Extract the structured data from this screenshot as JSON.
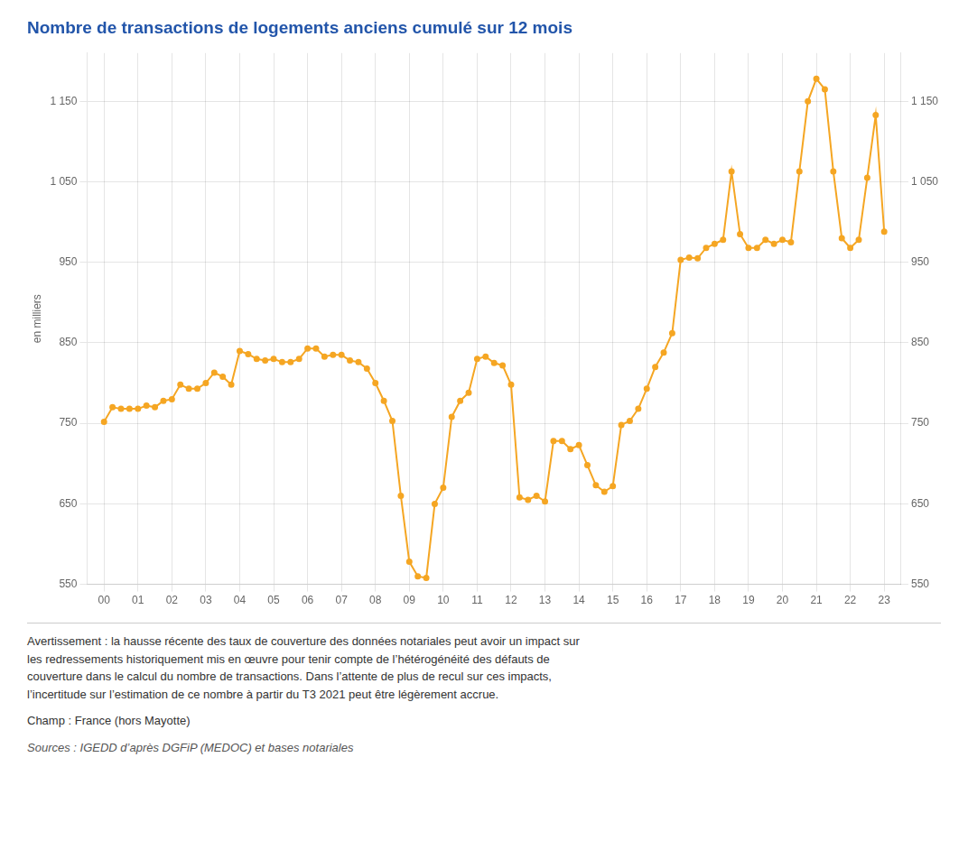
{
  "chart_data": {
    "type": "line",
    "title": "Nombre de transactions de logements anciens cumulé sur 12 mois",
    "ylabel": "en milliers",
    "color": "#F5A623",
    "marker": "circle",
    "grid": true,
    "x": [
      0.0,
      0.25,
      0.5,
      0.75,
      1.0,
      1.25,
      1.5,
      1.75,
      2.0,
      2.25,
      2.5,
      2.75,
      3.0,
      3.25,
      3.5,
      3.75,
      4.0,
      4.25,
      4.5,
      4.75,
      5.0,
      5.25,
      5.5,
      5.75,
      6.0,
      6.25,
      6.5,
      6.75,
      7.0,
      7.25,
      7.5,
      7.75,
      8.0,
      8.25,
      8.5,
      8.75,
      9.0,
      9.25,
      9.5,
      9.75,
      10.0,
      10.25,
      10.5,
      10.75,
      11.0,
      11.25,
      11.5,
      11.75,
      12.0,
      12.25,
      12.5,
      12.75,
      13.0,
      13.25,
      13.5,
      13.75,
      14.0,
      14.25,
      14.5,
      14.75,
      15.0,
      15.25,
      15.5,
      15.75,
      16.0,
      16.25,
      16.5,
      16.75,
      17.0,
      17.25,
      17.5,
      17.75,
      18.0,
      18.25,
      18.5,
      18.75,
      19.0,
      19.25,
      19.5,
      19.75,
      20.0,
      20.25,
      20.5,
      20.75,
      21.0,
      21.25,
      21.5,
      21.75,
      22.0,
      22.25,
      22.5,
      22.75,
      23.0
    ],
    "values": [
      752,
      770,
      768,
      768,
      768,
      772,
      770,
      778,
      780,
      798,
      793,
      793,
      800,
      813,
      808,
      798,
      840,
      836,
      830,
      828,
      830,
      826,
      826,
      830,
      843,
      843,
      833,
      835,
      835,
      828,
      826,
      818,
      800,
      778,
      753,
      660,
      578,
      560,
      558,
      650,
      670,
      758,
      778,
      788,
      830,
      833,
      825,
      822,
      798,
      658,
      655,
      660,
      653,
      728,
      728,
      718,
      723,
      698,
      673,
      665,
      672,
      748,
      753,
      768,
      793,
      820,
      838,
      862,
      953,
      956,
      955,
      968,
      973,
      978,
      1063,
      985,
      968,
      968,
      978,
      973,
      978,
      975,
      1063,
      1150,
      1178,
      1165,
      1063,
      980,
      968,
      978,
      1055,
      1133,
      988
    ],
    "xlim": [
      -0.5,
      23.5
    ],
    "xticks": [
      {
        "value": 0,
        "label": "00"
      },
      {
        "value": 1,
        "label": "01"
      },
      {
        "value": 2,
        "label": "02"
      },
      {
        "value": 3,
        "label": "03"
      },
      {
        "value": 4,
        "label": "04"
      },
      {
        "value": 5,
        "label": "05"
      },
      {
        "value": 6,
        "label": "06"
      },
      {
        "value": 7,
        "label": "07"
      },
      {
        "value": 8,
        "label": "08"
      },
      {
        "value": 9,
        "label": "09"
      },
      10,
      11,
      12,
      13,
      14,
      15,
      16,
      17,
      18,
      19,
      20,
      21,
      22,
      23
    ],
    "ylim": [
      550,
      1210
    ],
    "yticks": [
      550,
      650,
      750,
      850,
      950,
      {
        "value": 1050,
        "label": "1 050"
      },
      {
        "value": 1150,
        "label": "1 150"
      }
    ],
    "y2lim": [
      550,
      1210
    ],
    "y2ticks": [
      550,
      650,
      750,
      850,
      950,
      {
        "value": 1050,
        "label": "1 050"
      },
      {
        "value": 1150,
        "label": "1 150"
      }
    ],
    "annotations": [
      "Avertissement : la hausse récente des taux de couverture des données notariales peut avoir un impact sur\nles redressements historiquement mis en œuvre pour tenir compte de l’hétérogénéité des défauts de\ncouverture dans le calcul du nombre de transactions. Dans l’attente de plus de recul sur ces impacts,\nl’incertitude sur l’estimation de ce nombre à partir du T3 2021 peut être légèrement accrue.",
      "Champ : France (hors Mayotte)",
      "Sources : IGEDD d’après DGFiP (MEDOC) et bases notariales"
    ]
  }
}
